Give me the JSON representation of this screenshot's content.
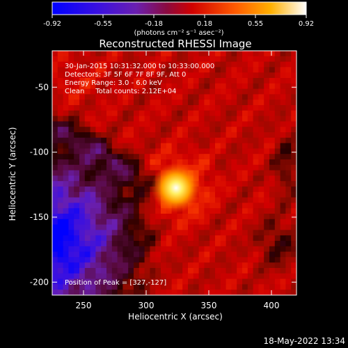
{
  "chart_data": {
    "type": "heatmap",
    "title": "Reconstructed RHESSI Image",
    "xlabel": "Heliocentric X (arcsec)",
    "ylabel": "Heliocentric Y (arcsec)",
    "xlim": [
      225,
      420
    ],
    "ylim": [
      -210,
      -22
    ],
    "x_ticks": [
      250,
      300,
      350,
      400
    ],
    "y_ticks": [
      -50,
      -100,
      -150,
      -200
    ],
    "colorbar": {
      "ticks": [
        "-0.92",
        "-0.55",
        "-0.18",
        "0.18",
        "0.55",
        "0.92"
      ],
      "range": [
        -0.92,
        0.92
      ],
      "unit_label": "(photons cm⁻² s⁻¹ asec⁻²)",
      "colors": [
        "#0000ff",
        "#6a1fb0",
        "#9a0030",
        "#e00000",
        "#ff7a00",
        "#ffd200",
        "#ffffff"
      ]
    },
    "peak": {
      "x": 327,
      "y": -127,
      "value": 0.92
    },
    "info_lines": [
      "30-Jan-2015 10:31:32.000 to 10:33:00.000",
      "Detectors: 3F 5F 6F 7F 8F 9F, Att 0",
      "Energy Range: 3.0 - 6.0 keV",
      "Clean     Total counts: 2.12E+04"
    ],
    "peak_label": "Position of Peak = [327,-127]",
    "grid": false
  },
  "footer": {
    "timestamp": "18-May-2022 13:34"
  }
}
